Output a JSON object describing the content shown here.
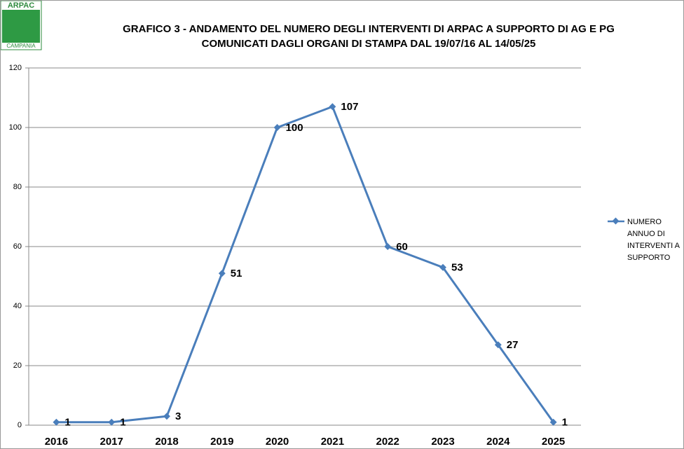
{
  "logo": {
    "top": "ARPAC",
    "bottom": "CAMPANIA"
  },
  "chart_data": {
    "type": "line",
    "title": "GRAFICO 3 - ANDAMENTO DEL NUMERO DEGLI INTERVENTI DI ARPAC A SUPPORTO DI AG E PG",
    "subtitle": "COMUNICATI DAGLI ORGANI DI STAMPA DAL 19/07/16 AL 14/05/25",
    "categories": [
      "2016",
      "2017",
      "2018",
      "2019",
      "2020",
      "2021",
      "2022",
      "2023",
      "2024",
      "2025"
    ],
    "series": [
      {
        "name": "NUMERO ANNUO DI INTERVENTI A SUPPORTO",
        "color": "#4a7ebb",
        "values": [
          1,
          1,
          3,
          51,
          100,
          107,
          60,
          53,
          27,
          1
        ]
      }
    ],
    "ylim": [
      0,
      120
    ],
    "yticks": [
      0,
      20,
      40,
      60,
      80,
      100,
      120
    ],
    "grid": true,
    "legend": "right"
  }
}
